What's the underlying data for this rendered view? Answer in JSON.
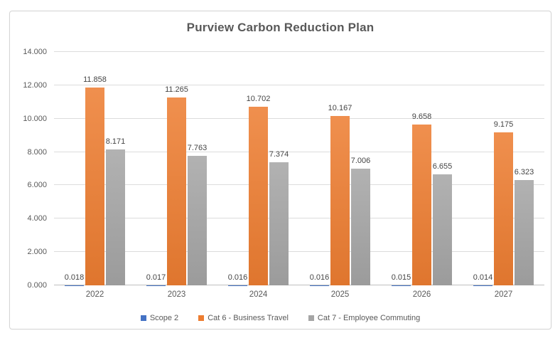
{
  "chart_data": {
    "type": "bar",
    "title": "Purview Carbon Reduction Plan",
    "categories": [
      "2022",
      "2023",
      "2024",
      "2025",
      "2026",
      "2027"
    ],
    "series": [
      {
        "name": "Scope 2",
        "color": "#4472c4",
        "values": [
          0.018,
          0.017,
          0.016,
          0.016,
          0.015,
          0.014
        ],
        "labels": [
          "0.018",
          "0.017",
          "0.016",
          "0.016",
          "0.015",
          "0.014"
        ]
      },
      {
        "name": "Cat 6 - Business Travel",
        "color": "#ed7d31",
        "values": [
          11.858,
          11.265,
          10.702,
          10.167,
          9.658,
          9.175
        ],
        "labels": [
          "11.858",
          "11.265",
          "10.702",
          "10.167",
          "9.658",
          "9.175"
        ]
      },
      {
        "name": "Cat 7 - Employee Commuting",
        "color": "#a5a5a5",
        "values": [
          8.171,
          7.763,
          7.374,
          7.006,
          6.655,
          6.323
        ],
        "labels": [
          "8.171",
          "7.763",
          "7.374",
          "7.006",
          "6.655",
          "6.323"
        ]
      }
    ],
    "ylim": [
      0,
      14
    ],
    "ytick_values": [
      0,
      2,
      4,
      6,
      8,
      10,
      12,
      14
    ],
    "ytick_labels": [
      "0.000",
      "2.000",
      "4.000",
      "6.000",
      "8.000",
      "10.000",
      "12.000",
      "14.000"
    ],
    "grid": true,
    "legend_position": "bottom",
    "colors": {
      "gridline": "#dcdcdc",
      "axis_line": "#bfbfbf",
      "title_text": "#595959",
      "tick_text": "#595959",
      "data_label_text": "#444444",
      "frame_border": "#d6d6d6",
      "background": "#ffffff"
    }
  }
}
